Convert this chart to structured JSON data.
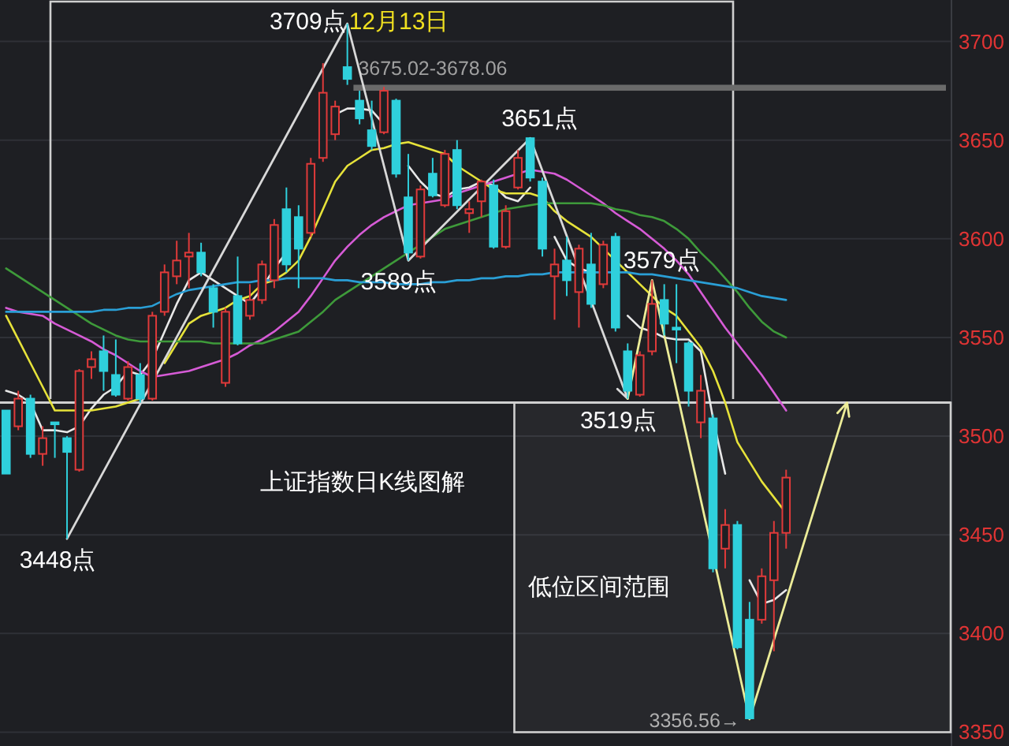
{
  "chart_data": {
    "type": "candlestick",
    "categories": [
      null,
      null,
      null,
      null,
      null,
      null,
      null,
      null,
      null,
      null,
      null,
      null,
      null,
      null,
      null,
      null,
      null,
      null,
      null,
      null,
      null,
      null,
      null,
      null,
      null,
      null,
      null,
      null,
      null,
      null,
      null,
      null,
      null,
      null,
      null,
      null,
      null,
      null,
      null,
      null,
      null,
      null,
      null,
      null,
      null,
      null,
      null,
      null,
      null,
      null,
      null,
      null,
      null,
      null,
      null,
      null,
      null,
      null,
      null,
      null,
      null,
      null,
      null,
      null,
      null,
      null,
      null,
      null,
      null,
      null,
      null,
      null,
      null,
      null,
      null,
      null,
      null,
      null
    ],
    "ohlc": [
      [
        3513,
        3513,
        3481,
        3481
      ],
      [
        3505,
        3523,
        3503,
        3519
      ],
      [
        3519,
        3521,
        3489,
        3491
      ],
      [
        3491,
        3505,
        3485,
        3499
      ],
      [
        3507,
        3507,
        3489,
        3506
      ],
      [
        3499,
        3500,
        3448,
        3492
      ],
      [
        3483,
        3534,
        3482,
        3533
      ],
      [
        3535,
        3543,
        3529,
        3539
      ],
      [
        3543,
        3551,
        3523,
        3533
      ],
      [
        3531,
        3549,
        3520,
        3521
      ],
      [
        3519,
        3538,
        3518,
        3535
      ],
      [
        3531,
        3537,
        3517,
        3519
      ],
      [
        3519,
        3563,
        3518,
        3561
      ],
      [
        3563,
        3587,
        3561,
        3583
      ],
      [
        3581,
        3599,
        3577,
        3589
      ],
      [
        3591,
        3603,
        3575,
        3593
      ],
      [
        3593,
        3598,
        3581,
        3583
      ],
      [
        3575,
        3577,
        3555,
        3563
      ],
      [
        3527,
        3565,
        3525,
        3563
      ],
      [
        3571,
        3591,
        3546,
        3547
      ],
      [
        3561,
        3577,
        3559,
        3569
      ],
      [
        3569,
        3589,
        3567,
        3587
      ],
      [
        3579,
        3610,
        3575,
        3607
      ],
      [
        3615,
        3626,
        3583,
        3587
      ],
      [
        3611,
        3617,
        3575,
        3595
      ],
      [
        3603,
        3641,
        3601,
        3638
      ],
      [
        3641,
        3689,
        3639,
        3674
      ],
      [
        3653,
        3670,
        3650,
        3667
      ],
      [
        3687,
        3709,
        3678,
        3681
      ],
      [
        3670,
        3675,
        3658,
        3661
      ],
      [
        3655,
        3670,
        3645,
        3647
      ],
      [
        3654,
        3677,
        3653,
        3675
      ],
      [
        3670,
        3671,
        3631,
        3633
      ],
      [
        3621,
        3643,
        3589,
        3593
      ],
      [
        3591,
        3627,
        3590,
        3625
      ],
      [
        3633,
        3641,
        3621,
        3622
      ],
      [
        3617,
        3645,
        3616,
        3643
      ],
      [
        3645,
        3650,
        3615,
        3617
      ],
      [
        3613,
        3619,
        3603,
        3615
      ],
      [
        3619,
        3630,
        3611,
        3629
      ],
      [
        3627,
        3630,
        3595,
        3596
      ],
      [
        3596,
        3617,
        3595,
        3614
      ],
      [
        3626,
        3645,
        3625,
        3641
      ],
      [
        3651,
        3651,
        3629,
        3631
      ],
      [
        3629,
        3631,
        3591,
        3595
      ],
      [
        3581,
        3595,
        3559,
        3587
      ],
      [
        3589,
        3601,
        3571,
        3579
      ],
      [
        3573,
        3597,
        3555,
        3595
      ],
      [
        3587,
        3603,
        3565,
        3567
      ],
      [
        3577,
        3599,
        3575,
        3597
      ],
      [
        3601,
        3603,
        3553,
        3555
      ],
      [
        3543,
        3547,
        3519,
        3523
      ],
      [
        3521,
        3543,
        3520,
        3541
      ],
      [
        3543,
        3579,
        3541,
        3567
      ],
      [
        3569,
        3577,
        3551,
        3557
      ],
      [
        3555,
        3577,
        3537,
        3554
      ],
      [
        3547,
        3548,
        3515,
        3523
      ],
      [
        3507,
        3531,
        3499,
        3523
      ],
      [
        3509,
        3511,
        3431,
        3433
      ],
      [
        3443,
        3463,
        3433,
        3455
      ],
      [
        3455,
        3457,
        3392,
        3393
      ],
      [
        3407,
        3416,
        3356.56,
        3357
      ],
      [
        3407,
        3433,
        3405,
        3429
      ],
      [
        3427,
        3457,
        3391,
        3451
      ],
      [
        3451,
        3483,
        3443,
        3479
      ],
      null,
      null,
      null,
      null,
      null,
      null,
      null,
      null,
      null,
      null,
      null,
      null,
      null
    ],
    "series": [
      {
        "type": "line",
        "color": "#e8e8e8",
        "values": [
          3523,
          3521,
          3517,
          3503,
          3503,
          3502,
          3505,
          3514,
          3521,
          3525,
          3533,
          3531,
          3539,
          3553,
          3567,
          3579,
          3583,
          3579,
          3575,
          3571,
          3567,
          3575,
          3585,
          3593,
          null,
          null,
          null,
          3663,
          3666,
          3666,
          3665,
          3658,
          null,
          3637,
          3629,
          3623,
          3621,
          3625,
          3626,
          3629,
          3627,
          3621,
          3619,
          3626,
          null,
          3601,
          3589,
          3585,
          3583,
          null,
          null,
          3561,
          3555,
          3553,
          3550,
          3549,
          3549,
          3543,
          3509,
          3481,
          null,
          3427,
          3415,
          3417,
          3422,
          null,
          null,
          null,
          null,
          null,
          null,
          null,
          null,
          null,
          null,
          null,
          null,
          null
        ]
      },
      {
        "type": "line",
        "color": "#e6e23a",
        "values": [
          3561,
          3549,
          3537,
          3525,
          3513,
          3513,
          3513,
          3513,
          3514,
          3515,
          3517,
          3519,
          null,
          3537,
          3547,
          3557,
          3561,
          3563,
          3565,
          3569,
          3571,
          3577,
          3579,
          3583,
          3589,
          3601,
          3615,
          3629,
          3637,
          3641,
          3645,
          3646,
          3648,
          3649,
          3647,
          3645,
          3643,
          3637,
          3633,
          3629,
          3625,
          3623,
          3623,
          3623,
          3621,
          3614,
          3609,
          3605,
          3601,
          3595,
          3589,
          3583,
          3577,
          3571,
          3565,
          3561,
          3553,
          3545,
          3533,
          3517,
          3497,
          3487,
          3477,
          3469,
          3461,
          null,
          null,
          null,
          null,
          null,
          null,
          null,
          null,
          null,
          null,
          null,
          null,
          null
        ]
      },
      {
        "type": "line",
        "color": "#d65bd6",
        "values": [
          3565,
          3563,
          3562,
          3561,
          3557,
          3554,
          3551,
          3548,
          3544,
          3541,
          3537,
          3533,
          3530,
          3531,
          3532,
          3533,
          3535,
          3537,
          3539,
          3542,
          3546,
          3549,
          3553,
          3558,
          3563,
          3571,
          3580,
          3589,
          3596,
          3602,
          3607,
          3611,
          3614,
          3617,
          3618,
          3619,
          3620,
          3623,
          3625,
          3627,
          3629,
          3631,
          3633,
          3635,
          3634,
          3633,
          3630,
          3626,
          3622,
          3618,
          3613,
          3609,
          3605,
          3600,
          3595,
          3589,
          3582,
          3573,
          3564,
          3555,
          3547,
          3539,
          3531,
          3522,
          3513,
          null,
          null,
          null,
          null,
          null,
          null,
          null,
          null,
          null,
          null,
          null,
          null,
          null
        ]
      },
      {
        "type": "line",
        "color": "#3e9a3a",
        "values": [
          3585,
          3581,
          3577,
          3573,
          3569,
          3565,
          3561,
          3557,
          3554,
          3551,
          3549,
          3548,
          3548,
          3548,
          3548,
          3548,
          3548,
          3547,
          3547,
          3547,
          3547,
          3547,
          3549,
          3551,
          3553,
          3558,
          3563,
          3569,
          3573,
          3577,
          3581,
          3585,
          3589,
          3593,
          3597,
          3601,
          3605,
          3607,
          3609,
          3611,
          3613,
          3615,
          3616,
          3617,
          3618,
          3618,
          3618,
          3618,
          3618,
          3617,
          3615,
          3614,
          3612,
          3611,
          3609,
          3605,
          3600,
          3593,
          3587,
          3580,
          3573,
          3565,
          3558,
          3553,
          3550,
          null,
          null,
          null,
          null,
          null,
          null,
          null,
          null,
          null,
          null,
          null,
          null,
          null
        ]
      },
      {
        "type": "line",
        "color": "#2a9fd6",
        "values": [
          3563,
          3563,
          3563,
          3563,
          3563,
          3563,
          3563,
          3563,
          3564,
          3564,
          3565,
          3565,
          3566,
          3569,
          3572,
          3574,
          3575,
          3576,
          3577,
          3578,
          3578,
          3579,
          3579,
          3580,
          3580,
          3580,
          3580,
          3579,
          3579,
          3578,
          3578,
          3578,
          3577,
          3577,
          3577,
          3578,
          3578,
          3579,
          3579,
          3580,
          3580,
          3581,
          3581,
          3582,
          3582,
          3583,
          3583,
          3583,
          3583,
          3583,
          3583,
          3583,
          3582,
          3582,
          3581,
          3580,
          3579,
          3578,
          3577,
          3576,
          3575,
          3573,
          3571,
          3570,
          3569,
          null,
          null,
          null,
          null,
          null,
          null,
          null,
          null,
          null,
          null,
          null,
          null,
          null
        ]
      }
    ],
    "ylim": [
      3343,
      3721
    ],
    "yticks": [
      3350,
      3400,
      3450,
      3500,
      3550,
      3600,
      3650,
      3700
    ],
    "grid": "y",
    "tick_labels": "y",
    "ref_lines": [
      {
        "axis": "y",
        "value": 3517,
        "color": "#d0d0d0"
      }
    ],
    "bands": [
      {
        "axis": "y",
        "from": 3675.02,
        "to": 3678.06,
        "label": "3675.02-3678.06",
        "color": "#6a6a6a"
      },
      {
        "axis": "y",
        "from": 3350,
        "to": 3517,
        "label": "低位区间范围",
        "color": "#cfcfcf"
      }
    ],
    "annotations": [
      "3709点",
      "12月13日",
      "3589点",
      "3651点",
      "3579点",
      "3519点",
      "3448点",
      "3356.56→",
      "上证指数日K线图解"
    ]
  }
}
